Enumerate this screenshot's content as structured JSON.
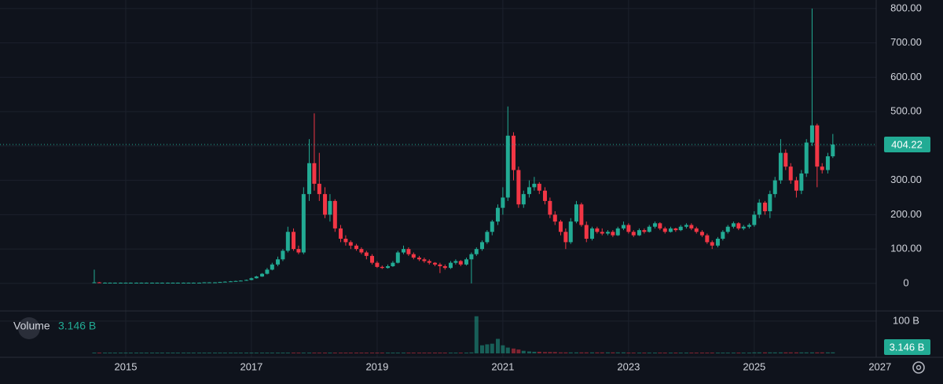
{
  "chart_data": {
    "type": "candlestick",
    "up_color": "#22ab94",
    "down_color": "#f23645",
    "grid": true,
    "xlim": [
      2013,
      2026.94
    ],
    "xticks": [
      2015,
      2017,
      2019,
      2021,
      2023,
      2025,
      2027
    ],
    "ylim": [
      -78,
      825
    ],
    "yticks": [
      0,
      {
        "value": 100,
        "label": "100.00"
      },
      {
        "value": 200,
        "label": "200.00"
      },
      {
        "value": 300,
        "label": "300.00"
      },
      {
        "value": 400,
        "label": "400.00"
      },
      {
        "value": 500,
        "label": "500.00"
      },
      {
        "value": 600,
        "label": "600.00"
      },
      {
        "value": 700,
        "label": "700.00"
      },
      {
        "value": 800,
        "label": "800.00"
      }
    ],
    "x": [
      2014.5,
      2014.58,
      2014.67,
      2014.75,
      2014.83,
      2014.92,
      2015,
      2015.08,
      2015.17,
      2015.25,
      2015.33,
      2015.42,
      2015.5,
      2015.58,
      2015.67,
      2015.75,
      2015.83,
      2015.92,
      2016,
      2016.08,
      2016.17,
      2016.25,
      2016.33,
      2016.42,
      2016.5,
      2016.58,
      2016.67,
      2016.75,
      2016.83,
      2016.92,
      2017,
      2017.08,
      2017.17,
      2017.25,
      2017.33,
      2017.42,
      2017.5,
      2017.58,
      2017.67,
      2017.75,
      2017.83,
      2017.92,
      2018,
      2018.08,
      2018.17,
      2018.25,
      2018.33,
      2018.42,
      2018.5,
      2018.58,
      2018.67,
      2018.75,
      2018.83,
      2018.92,
      2019,
      2019.08,
      2019.17,
      2019.25,
      2019.33,
      2019.42,
      2019.5,
      2019.58,
      2019.67,
      2019.75,
      2019.83,
      2019.92,
      2020,
      2020.08,
      2020.17,
      2020.25,
      2020.33,
      2020.42,
      2020.5,
      2020.58,
      2020.67,
      2020.75,
      2020.83,
      2020.92,
      2021,
      2021.08,
      2021.17,
      2021.25,
      2021.33,
      2021.42,
      2021.5,
      2021.58,
      2021.67,
      2021.75,
      2021.83,
      2021.92,
      2022,
      2022.08,
      2022.17,
      2022.25,
      2022.33,
      2022.42,
      2022.5,
      2022.58,
      2022.67,
      2022.75,
      2022.83,
      2022.92,
      2023,
      2023.08,
      2023.17,
      2023.25,
      2023.33,
      2023.42,
      2023.5,
      2023.58,
      2023.67,
      2023.75,
      2023.83,
      2023.92,
      2024,
      2024.08,
      2024.17,
      2024.25,
      2024.33,
      2024.42,
      2024.5,
      2024.58,
      2024.67,
      2024.75,
      2024.83,
      2024.92,
      2025,
      2025.08,
      2025.17,
      2025.25,
      2025.33,
      2025.42,
      2025.5,
      2025.58,
      2025.67,
      2025.75,
      2025.83,
      2025.92,
      2026,
      2026.08,
      2026.17,
      2026.25
    ],
    "ohlc": [
      [
        2,
        40,
        1,
        3
      ],
      [
        3,
        4,
        1.5,
        2
      ],
      [
        2,
        3,
        1.5,
        2
      ],
      [
        2,
        2.5,
        1.5,
        2
      ],
      [
        2,
        2.5,
        1.5,
        2
      ],
      [
        2,
        2.5,
        1.5,
        2
      ],
      [
        2,
        2.5,
        1.5,
        2
      ],
      [
        2,
        2.5,
        1.5,
        2
      ],
      [
        2,
        2.5,
        1.5,
        2
      ],
      [
        2,
        2.5,
        1.5,
        2
      ],
      [
        2,
        2.5,
        1.5,
        2
      ],
      [
        2,
        2.5,
        1.5,
        2
      ],
      [
        2,
        2.5,
        1.5,
        2
      ],
      [
        2,
        2.5,
        1.5,
        2
      ],
      [
        2,
        2.5,
        1.5,
        2
      ],
      [
        2,
        2.5,
        1.5,
        2
      ],
      [
        2,
        2.5,
        1.5,
        2
      ],
      [
        2,
        2.5,
        1.5,
        2
      ],
      [
        2,
        2.5,
        1.5,
        2
      ],
      [
        2,
        2.5,
        1.5,
        2
      ],
      [
        2,
        2.5,
        1.5,
        2
      ],
      [
        2,
        3.5,
        2,
        3
      ],
      [
        3,
        3.5,
        2.5,
        3
      ],
      [
        3,
        3.5,
        2.5,
        3
      ],
      [
        3,
        4.5,
        3,
        4
      ],
      [
        4,
        6,
        4,
        5
      ],
      [
        5,
        7,
        5,
        6
      ],
      [
        6,
        8,
        5.5,
        7
      ],
      [
        7,
        9,
        6.5,
        8
      ],
      [
        8,
        11,
        7.5,
        10
      ],
      [
        10,
        17,
        9,
        15
      ],
      [
        15,
        22,
        14,
        20
      ],
      [
        20,
        30,
        19,
        28
      ],
      [
        28,
        45,
        26,
        40
      ],
      [
        40,
        60,
        38,
        55
      ],
      [
        55,
        78,
        50,
        70
      ],
      [
        70,
        100,
        65,
        95
      ],
      [
        95,
        165,
        90,
        150
      ],
      [
        150,
        160,
        95,
        100
      ],
      [
        100,
        110,
        85,
        90
      ],
      [
        90,
        280,
        85,
        260
      ],
      [
        260,
        420,
        240,
        350
      ],
      [
        350,
        495,
        270,
        290
      ],
      [
        290,
        380,
        240,
        260
      ],
      [
        260,
        280,
        190,
        200
      ],
      [
        200,
        260,
        180,
        240
      ],
      [
        240,
        245,
        150,
        160
      ],
      [
        160,
        170,
        120,
        130
      ],
      [
        130,
        140,
        110,
        120
      ],
      [
        120,
        125,
        100,
        110
      ],
      [
        110,
        115,
        95,
        100
      ],
      [
        100,
        105,
        85,
        90
      ],
      [
        90,
        95,
        70,
        80
      ],
      [
        80,
        85,
        55,
        60
      ],
      [
        60,
        65,
        45,
        48
      ],
      [
        48,
        52,
        42,
        45
      ],
      [
        45,
        55,
        43,
        50
      ],
      [
        50,
        65,
        48,
        60
      ],
      [
        60,
        95,
        58,
        90
      ],
      [
        90,
        110,
        85,
        100
      ],
      [
        100,
        105,
        80,
        85
      ],
      [
        85,
        90,
        70,
        75
      ],
      [
        75,
        80,
        65,
        70
      ],
      [
        70,
        75,
        60,
        65
      ],
      [
        65,
        70,
        55,
        60
      ],
      [
        60,
        62,
        50,
        55
      ],
      [
        55,
        60,
        30,
        50
      ],
      [
        50,
        55,
        40,
        45
      ],
      [
        45,
        65,
        42,
        60
      ],
      [
        60,
        70,
        55,
        65
      ],
      [
        65,
        68,
        50,
        55
      ],
      [
        55,
        75,
        52,
        70
      ],
      [
        70,
        90,
        0,
        85
      ],
      [
        85,
        105,
        80,
        100
      ],
      [
        100,
        125,
        95,
        120
      ],
      [
        120,
        155,
        115,
        150
      ],
      [
        150,
        185,
        140,
        180
      ],
      [
        180,
        230,
        170,
        220
      ],
      [
        220,
        280,
        200,
        250
      ],
      [
        250,
        515,
        240,
        430
      ],
      [
        430,
        440,
        300,
        330
      ],
      [
        330,
        340,
        220,
        230
      ],
      [
        230,
        270,
        220,
        260
      ],
      [
        260,
        300,
        250,
        280
      ],
      [
        280,
        310,
        270,
        290
      ],
      [
        290,
        295,
        260,
        270
      ],
      [
        270,
        280,
        230,
        240
      ],
      [
        240,
        250,
        190,
        200
      ],
      [
        200,
        210,
        170,
        180
      ],
      [
        180,
        185,
        140,
        150
      ],
      [
        150,
        160,
        100,
        120
      ],
      [
        120,
        190,
        115,
        180
      ],
      [
        180,
        240,
        175,
        230
      ],
      [
        230,
        235,
        165,
        170
      ],
      [
        170,
        180,
        120,
        130
      ],
      [
        130,
        165,
        125,
        160
      ],
      [
        160,
        165,
        145,
        150
      ],
      [
        150,
        160,
        140,
        145
      ],
      [
        145,
        155,
        140,
        150
      ],
      [
        150,
        155,
        135,
        140
      ],
      [
        140,
        165,
        138,
        160
      ],
      [
        160,
        180,
        155,
        170
      ],
      [
        170,
        175,
        145,
        150
      ],
      [
        150,
        155,
        135,
        140
      ],
      [
        140,
        160,
        138,
        155
      ],
      [
        155,
        160,
        145,
        150
      ],
      [
        150,
        170,
        148,
        165
      ],
      [
        165,
        180,
        160,
        175
      ],
      [
        175,
        178,
        155,
        160
      ],
      [
        160,
        165,
        145,
        150
      ],
      [
        150,
        165,
        148,
        160
      ],
      [
        160,
        162,
        150,
        155
      ],
      [
        155,
        170,
        152,
        165
      ],
      [
        165,
        175,
        160,
        170
      ],
      [
        170,
        175,
        155,
        160
      ],
      [
        160,
        165,
        145,
        150
      ],
      [
        150,
        155,
        135,
        140
      ],
      [
        140,
        145,
        115,
        120
      ],
      [
        120,
        125,
        100,
        110
      ],
      [
        110,
        135,
        105,
        130
      ],
      [
        130,
        155,
        125,
        150
      ],
      [
        150,
        170,
        145,
        165
      ],
      [
        165,
        180,
        160,
        175
      ],
      [
        175,
        178,
        155,
        160
      ],
      [
        160,
        170,
        155,
        165
      ],
      [
        165,
        175,
        160,
        170
      ],
      [
        170,
        210,
        165,
        200
      ],
      [
        200,
        245,
        190,
        235
      ],
      [
        235,
        240,
        200,
        210
      ],
      [
        210,
        270,
        190,
        260
      ],
      [
        260,
        310,
        250,
        300
      ],
      [
        300,
        420,
        290,
        380
      ],
      [
        380,
        390,
        330,
        340
      ],
      [
        340,
        350,
        290,
        300
      ],
      [
        300,
        310,
        250,
        270
      ],
      [
        270,
        330,
        260,
        320
      ],
      [
        320,
        420,
        310,
        410
      ],
      [
        410,
        800,
        400,
        460
      ],
      [
        460,
        465,
        280,
        340
      ],
      [
        340,
        350,
        320,
        330
      ],
      [
        330,
        380,
        320,
        370
      ],
      [
        370,
        435,
        365,
        404.22
      ]
    ],
    "volume": {
      "name": "Volume",
      "last_label": "3.146 B",
      "ylim": [
        0,
        129
      ],
      "yticks": [
        {
          "value": 100,
          "label": "100 B"
        }
      ],
      "values": [
        0.3,
        0.3,
        0.3,
        0.3,
        0.3,
        0.3,
        0.3,
        0.3,
        0.3,
        0.3,
        0.3,
        0.3,
        0.3,
        0.3,
        0.3,
        0.3,
        0.3,
        0.3,
        0.3,
        0.3,
        0.3,
        0.3,
        0.3,
        0.3,
        0.3,
        0.3,
        0.3,
        0.3,
        0.3,
        0.3,
        0.5,
        0.5,
        0.5,
        0.5,
        0.5,
        0.5,
        0.5,
        0.5,
        0.5,
        0.5,
        0.5,
        0.5,
        1,
        1,
        1,
        1,
        1,
        1,
        1,
        1,
        1,
        1,
        1,
        1,
        1,
        1,
        1,
        1,
        1,
        1,
        1,
        1,
        1,
        1,
        1,
        1,
        1,
        1,
        1,
        1,
        1,
        1,
        3,
        115,
        25,
        28,
        30,
        45,
        25,
        18,
        15,
        12,
        8,
        6,
        5,
        5,
        4,
        4,
        4,
        3,
        3,
        3,
        3,
        3,
        3,
        3,
        3,
        3,
        3,
        3,
        3,
        3,
        2,
        2,
        2,
        2,
        2,
        2,
        2,
        2,
        2,
        2,
        2,
        2,
        2,
        2,
        2,
        2,
        2,
        2,
        2,
        2,
        2,
        2,
        2,
        2,
        3,
        3,
        3,
        3,
        3,
        3,
        3,
        3,
        3,
        3,
        3,
        3,
        3,
        3,
        3,
        3.146
      ]
    }
  }
}
